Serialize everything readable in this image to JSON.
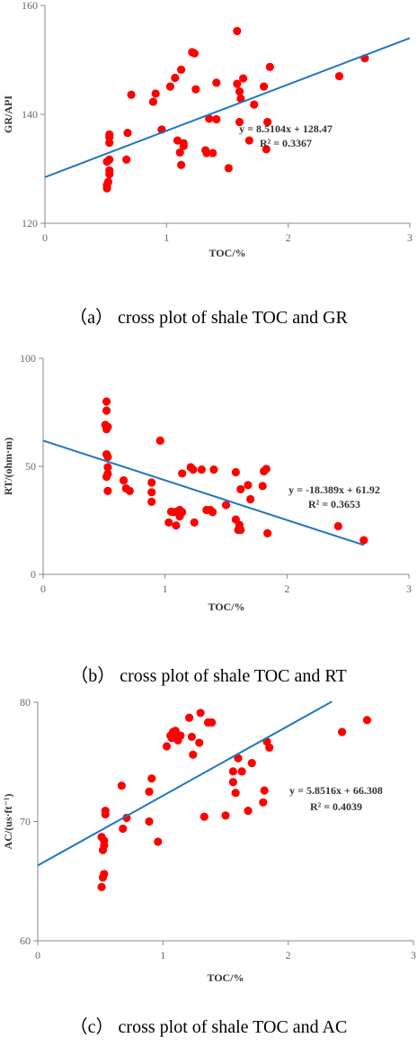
{
  "colors": {
    "point": "#ff0000",
    "trend": "#1f77c4",
    "axis": "#888888"
  },
  "captions": [
    "（a） cross plot of shale TOC and GR",
    "（b） cross plot of shale TOC and RT",
    "（c） cross plot of shale TOC and AC"
  ],
  "chart_data": [
    {
      "type": "scatter",
      "xlabel": "TOC/%",
      "ylabel": "GR/API",
      "xlim": [
        0,
        3
      ],
      "ylim": [
        120,
        160
      ],
      "xticks": [
        "0",
        "1",
        "2",
        "3"
      ],
      "yticks": [
        "120",
        "140",
        "160"
      ],
      "equation": "y = 8.5104x + 128.47",
      "r2": "R² = 0.3367",
      "trendline": {
        "slope": 8.5104,
        "intercept": 128.47,
        "x_range": [
          0,
          3
        ]
      },
      "points": [
        [
          0.51,
          126.4
        ],
        [
          0.51,
          127.0
        ],
        [
          0.52,
          127.6
        ],
        [
          0.53,
          129.0
        ],
        [
          0.53,
          129.7
        ],
        [
          0.51,
          131.3
        ],
        [
          0.53,
          131.7
        ],
        [
          0.53,
          134.8
        ],
        [
          0.53,
          135.8
        ],
        [
          0.53,
          136.3
        ],
        [
          0.67,
          131.7
        ],
        [
          0.68,
          136.6
        ],
        [
          0.71,
          143.6
        ],
        [
          0.89,
          142.3
        ],
        [
          0.91,
          143.8
        ],
        [
          0.96,
          137.2
        ],
        [
          1.03,
          145.1
        ],
        [
          1.07,
          146.7
        ],
        [
          1.12,
          148.2
        ],
        [
          1.09,
          135.2
        ],
        [
          1.11,
          133.0
        ],
        [
          1.12,
          130.7
        ],
        [
          1.14,
          134.7
        ],
        [
          1.14,
          134.2
        ],
        [
          1.21,
          151.4
        ],
        [
          1.23,
          151.2
        ],
        [
          1.24,
          144.6
        ],
        [
          1.32,
          133.4
        ],
        [
          1.33,
          132.9
        ],
        [
          1.35,
          139.2
        ],
        [
          1.38,
          132.9
        ],
        [
          1.41,
          139.1
        ],
        [
          1.41,
          145.8
        ],
        [
          1.51,
          130.1
        ],
        [
          1.58,
          155.3
        ],
        [
          1.58,
          145.6
        ],
        [
          1.6,
          138.6
        ],
        [
          1.6,
          144.2
        ],
        [
          1.63,
          146.6
        ],
        [
          1.61,
          142.9
        ],
        [
          1.68,
          135.2
        ],
        [
          1.72,
          141.8
        ],
        [
          1.8,
          145.1
        ],
        [
          1.82,
          133.6
        ],
        [
          1.83,
          138.6
        ],
        [
          1.85,
          148.7
        ],
        [
          2.42,
          147.0
        ],
        [
          2.63,
          150.3
        ]
      ]
    },
    {
      "type": "scatter",
      "xlabel": "TOC/%",
      "ylabel": "RT/(ohm·m)",
      "xlim": [
        0,
        3
      ],
      "ylim": [
        0,
        100
      ],
      "xticks": [
        "0",
        "1",
        "2",
        "3"
      ],
      "yticks": [
        "0",
        "50",
        "100"
      ],
      "equation": "y = -18.389x + 61.92",
      "r2": "R² = 0.3653",
      "trendline": {
        "slope": -18.389,
        "intercept": 61.92,
        "x_range": [
          0,
          2.63
        ]
      },
      "points": [
        [
          0.52,
          80.0
        ],
        [
          0.52,
          75.8
        ],
        [
          0.51,
          69.2
        ],
        [
          0.53,
          68.3
        ],
        [
          0.52,
          67.2
        ],
        [
          0.52,
          55.6
        ],
        [
          0.53,
          54.4
        ],
        [
          0.53,
          49.6
        ],
        [
          0.53,
          46.5
        ],
        [
          0.52,
          45.2
        ],
        [
          0.53,
          38.6
        ],
        [
          0.66,
          43.5
        ],
        [
          0.68,
          39.8
        ],
        [
          0.71,
          38.6
        ],
        [
          0.89,
          42.5
        ],
        [
          0.89,
          38.0
        ],
        [
          0.89,
          33.6
        ],
        [
          0.96,
          61.9
        ],
        [
          1.03,
          24.0
        ],
        [
          1.05,
          29.0
        ],
        [
          1.07,
          28.8
        ],
        [
          1.09,
          22.6
        ],
        [
          1.1,
          29.2
        ],
        [
          1.12,
          29.8
        ],
        [
          1.12,
          26.8
        ],
        [
          1.14,
          28.8
        ],
        [
          1.14,
          46.7
        ],
        [
          1.21,
          49.6
        ],
        [
          1.23,
          48.5
        ],
        [
          1.24,
          24.0
        ],
        [
          1.3,
          48.5
        ],
        [
          1.34,
          29.8
        ],
        [
          1.37,
          29.8
        ],
        [
          1.39,
          28.8
        ],
        [
          1.4,
          48.5
        ],
        [
          1.5,
          32.1
        ],
        [
          1.58,
          25.4
        ],
        [
          1.58,
          47.3
        ],
        [
          1.6,
          20.6
        ],
        [
          1.61,
          22.9
        ],
        [
          1.62,
          20.6
        ],
        [
          1.62,
          39.4
        ],
        [
          1.68,
          41.3
        ],
        [
          1.7,
          34.8
        ],
        [
          1.8,
          40.9
        ],
        [
          1.81,
          47.7
        ],
        [
          1.83,
          48.8
        ],
        [
          1.84,
          19.0
        ],
        [
          2.42,
          22.3
        ],
        [
          2.63,
          15.8
        ]
      ]
    },
    {
      "type": "scatter",
      "xlabel": "TOC/%",
      "ylabel": "AC/(us·ft⁻¹)",
      "xlim": [
        0,
        3
      ],
      "ylim": [
        60,
        80
      ],
      "xticks": [
        "0",
        "1",
        "2",
        "3"
      ],
      "yticks": [
        "60",
        "70",
        "80"
      ],
      "equation": "y = 5.8516x + 66.308",
      "r2": "R² = 0.4039",
      "trendline": {
        "slope": 5.8516,
        "intercept": 66.308,
        "x_range": [
          0,
          2.35
        ]
      },
      "points": [
        [
          0.51,
          64.5
        ],
        [
          0.52,
          65.3
        ],
        [
          0.53,
          65.6
        ],
        [
          0.52,
          67.6
        ],
        [
          0.53,
          68.0
        ],
        [
          0.51,
          68.7
        ],
        [
          0.53,
          68.4
        ],
        [
          0.54,
          70.6
        ],
        [
          0.54,
          70.9
        ],
        [
          0.67,
          73.0
        ],
        [
          0.68,
          69.4
        ],
        [
          0.71,
          70.3
        ],
        [
          0.89,
          70.0
        ],
        [
          0.89,
          72.5
        ],
        [
          0.91,
          73.6
        ],
        [
          0.96,
          68.3
        ],
        [
          1.03,
          76.3
        ],
        [
          1.06,
          77.2
        ],
        [
          1.07,
          77.0
        ],
        [
          1.08,
          77.5
        ],
        [
          1.1,
          77.6
        ],
        [
          1.11,
          77.1
        ],
        [
          1.12,
          76.8
        ],
        [
          1.14,
          77.2
        ],
        [
          1.21,
          78.7
        ],
        [
          1.23,
          77.1
        ],
        [
          1.24,
          75.6
        ],
        [
          1.29,
          76.6
        ],
        [
          1.3,
          79.1
        ],
        [
          1.33,
          70.4
        ],
        [
          1.36,
          78.3
        ],
        [
          1.39,
          78.3
        ],
        [
          1.5,
          70.5
        ],
        [
          1.56,
          73.3
        ],
        [
          1.56,
          74.2
        ],
        [
          1.58,
          72.4
        ],
        [
          1.6,
          75.3
        ],
        [
          1.63,
          74.2
        ],
        [
          1.68,
          70.9
        ],
        [
          1.71,
          74.9
        ],
        [
          1.8,
          71.6
        ],
        [
          1.81,
          72.6
        ],
        [
          1.83,
          76.7
        ],
        [
          1.85,
          76.2
        ],
        [
          2.43,
          77.5
        ],
        [
          2.63,
          78.5
        ]
      ]
    }
  ]
}
